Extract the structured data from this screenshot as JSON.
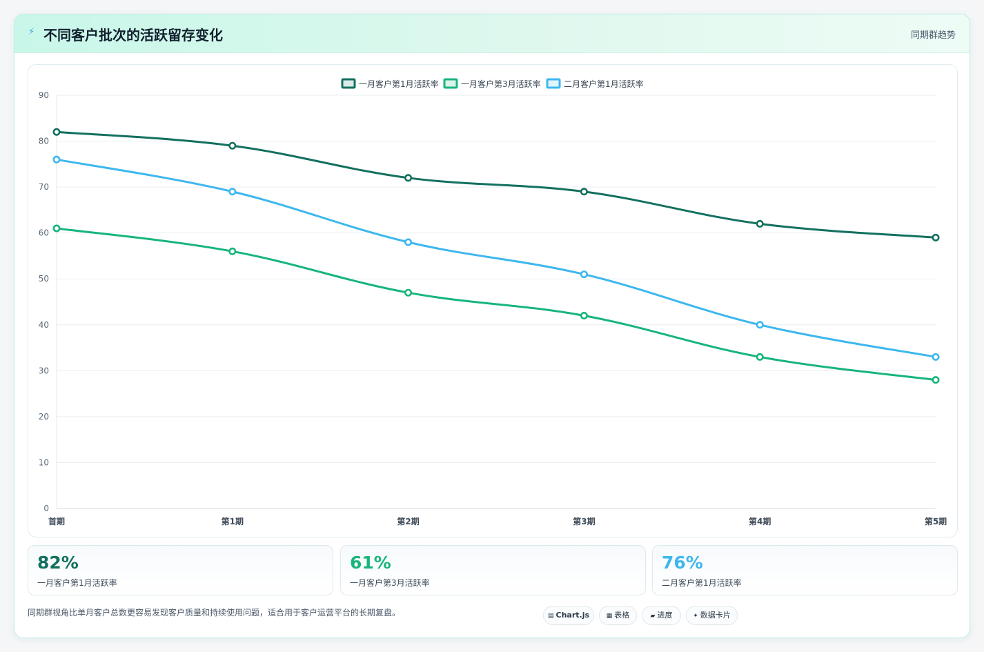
{
  "header": {
    "icon": "lightning-icon",
    "title": "不同客户批次的活跃留存变化",
    "tag": "同期群趋势"
  },
  "chart_data": {
    "type": "line",
    "title": "",
    "xlabel": "",
    "ylabel": "",
    "categories": [
      "首期",
      "第1期",
      "第2期",
      "第3期",
      "第4期",
      "第5期"
    ],
    "ylim": [
      0,
      90
    ],
    "yticks": [
      0,
      10,
      20,
      30,
      40,
      50,
      60,
      70,
      80,
      90
    ],
    "grid": true,
    "legend_position": "top",
    "series": [
      {
        "name": "一月客户第1月活跃率",
        "color": "#13705e",
        "values": [
          82,
          79,
          72,
          69,
          62,
          59
        ]
      },
      {
        "name": "一月客户第3月活跃率",
        "color": "#17b57c",
        "values": [
          61,
          56,
          47,
          42,
          33,
          28
        ]
      },
      {
        "name": "二月客户第1月活跃率",
        "color": "#3db7ee",
        "values": [
          76,
          69,
          58,
          51,
          40,
          33
        ]
      }
    ]
  },
  "kpis": [
    {
      "value": "82%",
      "label": "一月客户第1月活跃率",
      "color": "#13705e"
    },
    {
      "value": "61%",
      "label": "一月客户第3月活跃率",
      "color": "#17b57c"
    },
    {
      "value": "76%",
      "label": "二月客户第1月活跃率",
      "color": "#3db7ee"
    }
  ],
  "footnote": "同期群视角比单月客户总数更容易发现客户质量和持续使用问题，适合用于客户运营平台的长期复盘。",
  "chips": [
    {
      "icon": "▤",
      "label": "Chart.js"
    },
    {
      "icon": "▦",
      "label": "表格"
    },
    {
      "icon": "▰",
      "label": "进度"
    },
    {
      "icon": "✦",
      "label": "数据卡片"
    }
  ]
}
